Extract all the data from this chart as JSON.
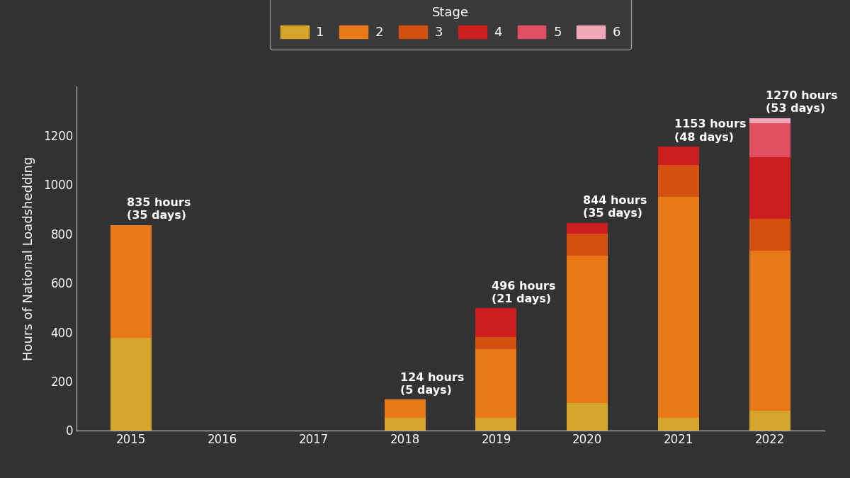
{
  "years": [
    2015,
    2016,
    2017,
    2018,
    2019,
    2020,
    2021,
    2022
  ],
  "stages": {
    "1": [
      375,
      0,
      0,
      50,
      50,
      110,
      50,
      80
    ],
    "2": [
      460,
      0,
      0,
      74,
      280,
      600,
      900,
      650
    ],
    "3": [
      0,
      0,
      0,
      0,
      50,
      90,
      130,
      130
    ],
    "4": [
      0,
      0,
      0,
      0,
      116,
      44,
      73,
      250
    ],
    "5": [
      0,
      0,
      0,
      0,
      0,
      0,
      0,
      140
    ],
    "6": [
      0,
      0,
      0,
      0,
      0,
      0,
      0,
      20
    ]
  },
  "totals": [
    835,
    0,
    0,
    124,
    496,
    844,
    1153,
    1270
  ],
  "days": [
    35,
    0,
    0,
    5,
    21,
    35,
    48,
    53
  ],
  "colors": {
    "1": "#D4A52A",
    "2": "#E87818",
    "3": "#D45010",
    "4": "#CC1E1E",
    "5": "#E05060",
    "6": "#F0A8B8"
  },
  "background_color": "#333333",
  "axes_bg": "#333333",
  "text_color": "#ffffff",
  "ylabel": "Hours of National Loadshedding",
  "legend_title": "Stage",
  "ylim": [
    0,
    1400
  ],
  "yticks": [
    0,
    200,
    400,
    600,
    800,
    1000,
    1200
  ],
  "bar_width": 0.45,
  "annotation_fontsize": 11.5,
  "tick_fontsize": 12,
  "ylabel_fontsize": 13,
  "legend_fontsize": 13
}
